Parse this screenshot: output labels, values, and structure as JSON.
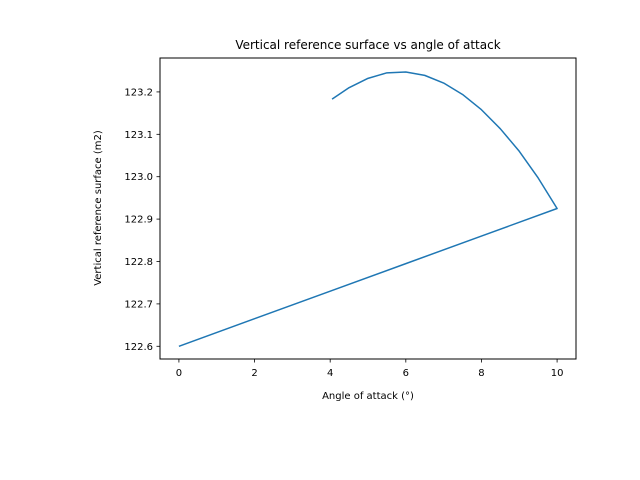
{
  "chart_data": {
    "type": "line",
    "title": "Vertical reference surface vs angle of attack",
    "xlabel": "Angle of attack (°)",
    "ylabel": "Vertical reference surface (m2)",
    "xlim": [
      -0.5,
      10.5
    ],
    "ylim": [
      122.57,
      123.28
    ],
    "xticks": [
      0,
      2,
      4,
      6,
      8,
      10
    ],
    "xtick_labels": [
      "0",
      "2",
      "4",
      "6",
      "8",
      "10"
    ],
    "yticks": [
      122.6,
      122.7,
      122.8,
      122.9,
      123.0,
      123.1,
      123.2
    ],
    "ytick_labels": [
      "122.6",
      "122.7",
      "122.8",
      "122.9",
      "123.0",
      "123.1",
      "123.2"
    ],
    "grid": false,
    "line_color": "#1f77b4",
    "series": [
      {
        "x": [
          0,
          2,
          4,
          6,
          8,
          10,
          9.5,
          9.0,
          8.5,
          8.0,
          7.5,
          7.0,
          6.5,
          6.0,
          5.5,
          5.0,
          4.5,
          4.05
        ],
        "y": [
          122.6,
          122.665,
          122.73,
          122.795,
          122.86,
          122.925,
          122.997,
          123.06,
          123.113,
          123.158,
          123.194,
          123.221,
          123.239,
          123.247,
          123.245,
          123.232,
          123.21,
          123.183
        ]
      }
    ]
  }
}
